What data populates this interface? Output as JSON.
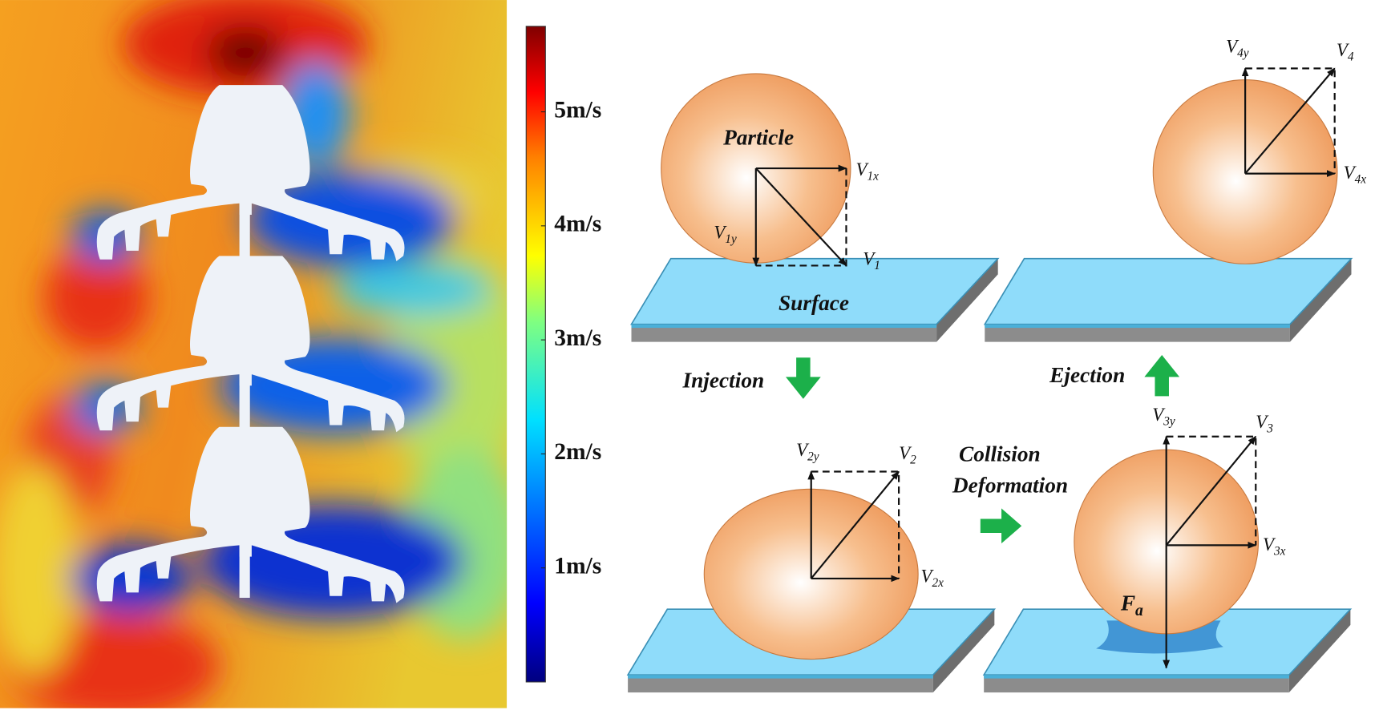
{
  "colorbar": {
    "range": [
      0,
      5.75
    ],
    "ticks": [
      {
        "value": 1,
        "label": "1m/s"
      },
      {
        "value": 2,
        "label": "2m/s"
      },
      {
        "value": 3,
        "label": "3m/s"
      },
      {
        "value": 4,
        "label": "4m/s"
      },
      {
        "value": 5,
        "label": "5m/s"
      }
    ]
  },
  "diagram": {
    "injection": {
      "particle": "Particle",
      "surface": "Surface",
      "vx": {
        "base": "V",
        "sub": "1x"
      },
      "vy": {
        "base": "V",
        "sub": "1y"
      },
      "v": {
        "base": "V",
        "sub": "1"
      }
    },
    "step_injection": "Injection",
    "collision": {
      "vx": {
        "base": "V",
        "sub": "2x"
      },
      "vy": {
        "base": "V",
        "sub": "2y"
      },
      "v": {
        "base": "V",
        "sub": "2"
      }
    },
    "step_deformation": [
      "Collision",
      "Deformation"
    ],
    "adhesion": {
      "vx": {
        "base": "V",
        "sub": "3x"
      },
      "vy": {
        "base": "V",
        "sub": "3y"
      },
      "v": {
        "base": "V",
        "sub": "3"
      },
      "force": {
        "base": "F",
        "sub": "a"
      }
    },
    "step_ejection": "Ejection",
    "ejection": {
      "vx": {
        "base": "V",
        "sub": "4x"
      },
      "vy": {
        "base": "V",
        "sub": "4y"
      },
      "v": {
        "base": "V",
        "sub": "4"
      }
    }
  }
}
